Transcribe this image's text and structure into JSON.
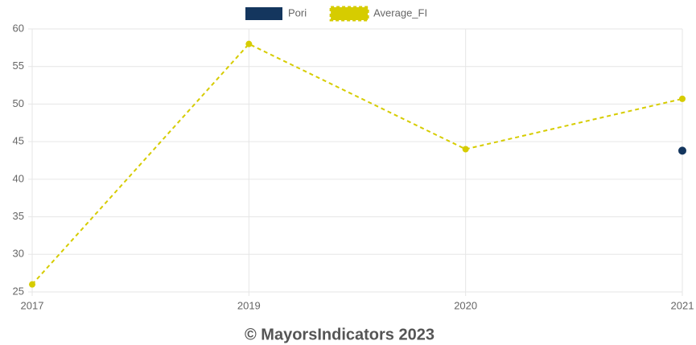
{
  "chart_data": {
    "type": "line",
    "categories": [
      "2017",
      "2019",
      "2020",
      "2021"
    ],
    "series": [
      {
        "name": "Pori",
        "color": "#14365e",
        "dashed": false,
        "values": [
          null,
          null,
          null,
          43.8
        ]
      },
      {
        "name": "Average_FI",
        "color": "#d6cc00",
        "dashed": true,
        "values": [
          26,
          58,
          44,
          50.7
        ]
      }
    ],
    "ylim": [
      25,
      60
    ],
    "yticks": [
      25,
      30,
      35,
      40,
      45,
      50,
      55,
      60
    ],
    "grid": true,
    "legend": "top"
  },
  "footer": "© MayorsIndicators 2023"
}
